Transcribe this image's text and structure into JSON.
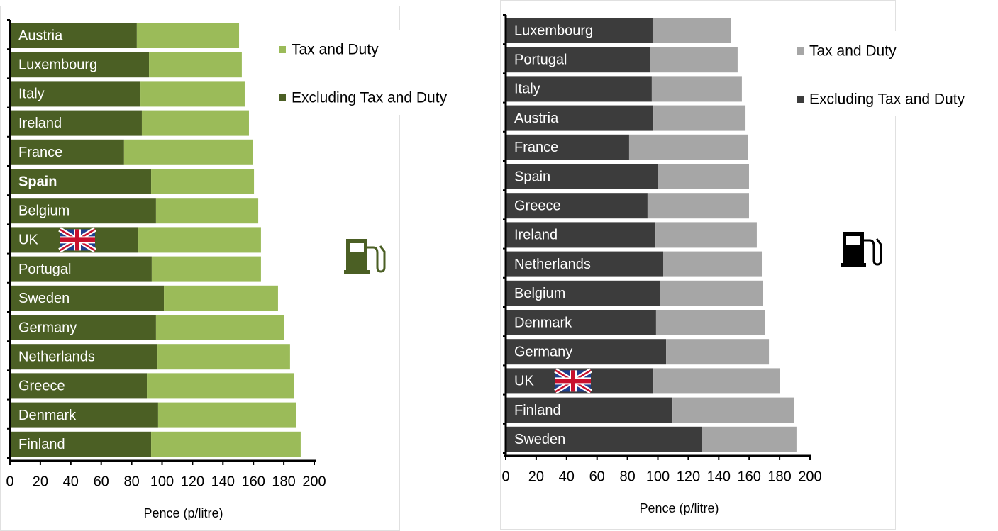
{
  "chart_data": [
    {
      "type": "bar",
      "orientation": "horizontal",
      "stacked": true,
      "categories": [
        "Austria",
        "Luxembourg",
        "Italy",
        "Ireland",
        "France",
        "Spain",
        "Belgium",
        "UK",
        "Portugal",
        "Sweden",
        "Germany",
        "Netherlands",
        "Greece",
        "Denmark",
        "Finland"
      ],
      "series": [
        {
          "name": "Excluding Tax and Duty",
          "color": "#4b5f24",
          "values": [
            83.4,
            91.4,
            85.8,
            86.7,
            75.0,
            92.8,
            96.0,
            84.4,
            93.2,
            101.2,
            96.0,
            97.0,
            90.0,
            97.4,
            92.8
          ]
        },
        {
          "name": "Tax and Duty",
          "color": "#9bbb59",
          "values": [
            67.2,
            61.0,
            68.5,
            70.4,
            84.9,
            67.6,
            67.2,
            80.6,
            71.8,
            75.0,
            84.4,
            87.1,
            96.5,
            90.5,
            98.3
          ]
        }
      ],
      "xlabel": "Pence (p/litre)",
      "xlim": [
        0,
        200
      ],
      "xticks": [
        0,
        20,
        40,
        60,
        80,
        100,
        120,
        140,
        160,
        180,
        200
      ],
      "bold_category_index": 5,
      "flag_category_index": 7,
      "legend": "upper right",
      "icon_color": "#4b5f24"
    },
    {
      "type": "bar",
      "orientation": "horizontal",
      "stacked": true,
      "categories": [
        "Luxembourg",
        "Portugal",
        "Italy",
        "Austria",
        "France",
        "Spain",
        "Greece",
        "Ireland",
        "Netherlands",
        "Belgium",
        "Denmark",
        "Germany",
        "UK",
        "Finland",
        "Sweden"
      ],
      "series": [
        {
          "name": "Excluding Tax and Duty",
          "color": "#3c3c3c",
          "values": [
            96.5,
            95.1,
            96.0,
            97.0,
            81.1,
            100.2,
            93.2,
            98.4,
            103.5,
            101.6,
            98.8,
            105.4,
            97.0,
            109.6,
            129.1
          ]
        },
        {
          "name": "Tax and Duty",
          "color": "#a6a6a6",
          "values": [
            51.3,
            57.3,
            59.2,
            60.6,
            77.9,
            59.7,
            66.7,
            66.6,
            64.8,
            67.6,
            71.4,
            67.6,
            83.0,
            80.1,
            62.0
          ]
        }
      ],
      "xlabel": "Pence (p/litre)",
      "xlim": [
        0,
        200
      ],
      "xticks": [
        0,
        20,
        40,
        60,
        80,
        100,
        120,
        140,
        160,
        180,
        200
      ],
      "flag_category_index": 12,
      "legend": "upper right",
      "icon_color": "#000000"
    }
  ]
}
